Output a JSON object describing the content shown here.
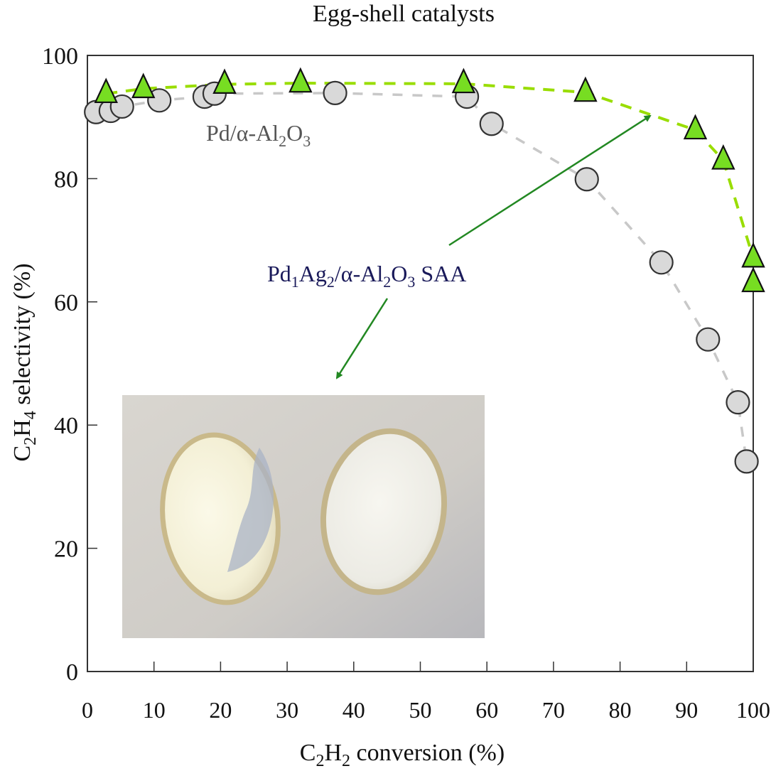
{
  "chart_data": {
    "type": "scatter",
    "title": "Egg-shell catalysts",
    "xlabel": "C2H2 conversion (%)",
    "ylabel": "C2H4 selectivity (%)",
    "xlim": [
      0,
      100
    ],
    "ylim": [
      0,
      100
    ],
    "xticks": [
      "0",
      "10",
      "20",
      "30",
      "40",
      "50",
      "60",
      "70",
      "80",
      "90",
      "100"
    ],
    "yticks": [
      "0",
      "20",
      "40",
      "60",
      "80",
      "100"
    ],
    "grid": false,
    "series": [
      {
        "name": "Pd/α-Al2O3",
        "marker": "circle",
        "color": "#d9d9d9",
        "line_color": "#c8c8c8",
        "x": [
          1.3,
          3.5,
          5.2,
          10.8,
          17.6,
          19.1,
          37.2,
          57.0,
          60.7,
          75.0,
          86.2,
          93.2,
          97.7,
          99.0
        ],
        "y": [
          90.8,
          91.0,
          91.7,
          92.7,
          93.3,
          93.8,
          93.9,
          93.3,
          88.9,
          79.9,
          66.4,
          53.9,
          43.7,
          34.1
        ]
      },
      {
        "name": "Pd1Ag2/α-Al2O3 SAA",
        "marker": "triangle",
        "color": "#77dd22",
        "line_color": "#99dd00",
        "x": [
          2.8,
          8.4,
          20.6,
          32.0,
          56.5,
          74.8,
          91.3,
          95.5,
          100,
          100
        ],
        "y": [
          93.8,
          94.6,
          95.3,
          95.5,
          95.4,
          94.0,
          87.9,
          83.0,
          67.1,
          63.1
        ]
      }
    ],
    "annotations": {
      "pd_label": {
        "base": "Pd/α-Al",
        "sub1": "2",
        "mid": "O",
        "sub2": "3"
      },
      "saa_label": {
        "p1": "Pd",
        "s1": "1",
        "p2": "Ag",
        "s2": "2",
        "p3": "/α-Al",
        "s3": "2",
        "p4": "O",
        "s4": "3",
        "p5": " SAA"
      },
      "arrow_color": "#228822",
      "saa_color": "#1a1a5a"
    },
    "xlabel_parts": {
      "a": "C",
      "s1": "2",
      "b": "H",
      "s2": "2",
      "c": " conversion (%)"
    },
    "ylabel_parts": {
      "a": "C",
      "s1": "2",
      "b": "H",
      "s2": "4",
      "c": " selectivity (%)"
    }
  }
}
